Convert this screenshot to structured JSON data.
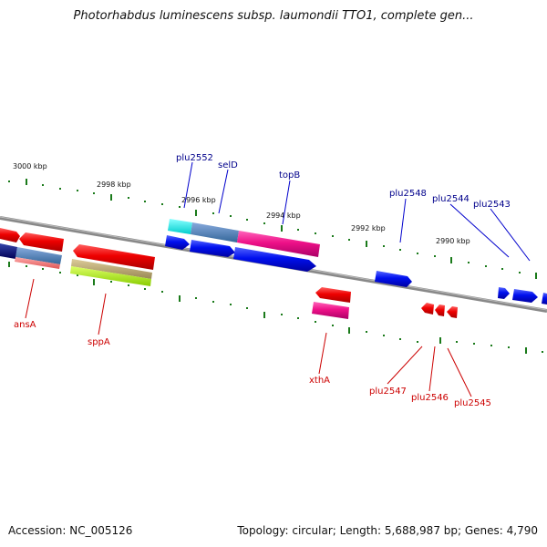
{
  "title": "Photorhabdus luminescens subsp. laumondii TTO1, complete gen...",
  "footer": {
    "accession": "Accession: NC_005126",
    "summary": "Topology: circular; Length: 5,688,987 bp; Genes: 4,790"
  },
  "scale_labels": [
    "3000 kbp",
    "2998 kbp",
    "2996 kbp",
    "2994 kbp",
    "2992 kbp",
    "2990 kbp"
  ],
  "gene_labels_top": [
    "plu2552",
    "selD",
    "topB",
    "plu2548",
    "plu2544",
    "plu2543"
  ],
  "gene_labels_bottom": [
    "ansA",
    "sppA",
    "xthA",
    "plu2547",
    "plu2546",
    "plu2545"
  ],
  "colors": {
    "forward_label": "#00008b",
    "reverse_label": "#cc0000",
    "backbone": "#808080",
    "tick": "#1a7a1a"
  }
}
